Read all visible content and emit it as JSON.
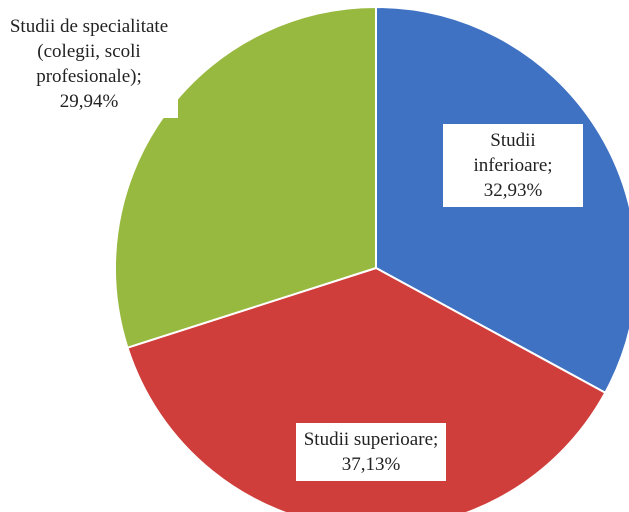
{
  "chart_data": {
    "type": "pie",
    "categories": [
      "Studii inferioare;",
      "Studii superioare;",
      "Studii de specialitate (colegii, scoli profesionale);"
    ],
    "values": [
      32.93,
      37.13,
      29.94
    ],
    "value_labels": [
      "32,93%",
      "37,13%",
      "29,94%"
    ],
    "colors": [
      "#3f72c3",
      "#cf3e3b",
      "#98b93f"
    ]
  }
}
